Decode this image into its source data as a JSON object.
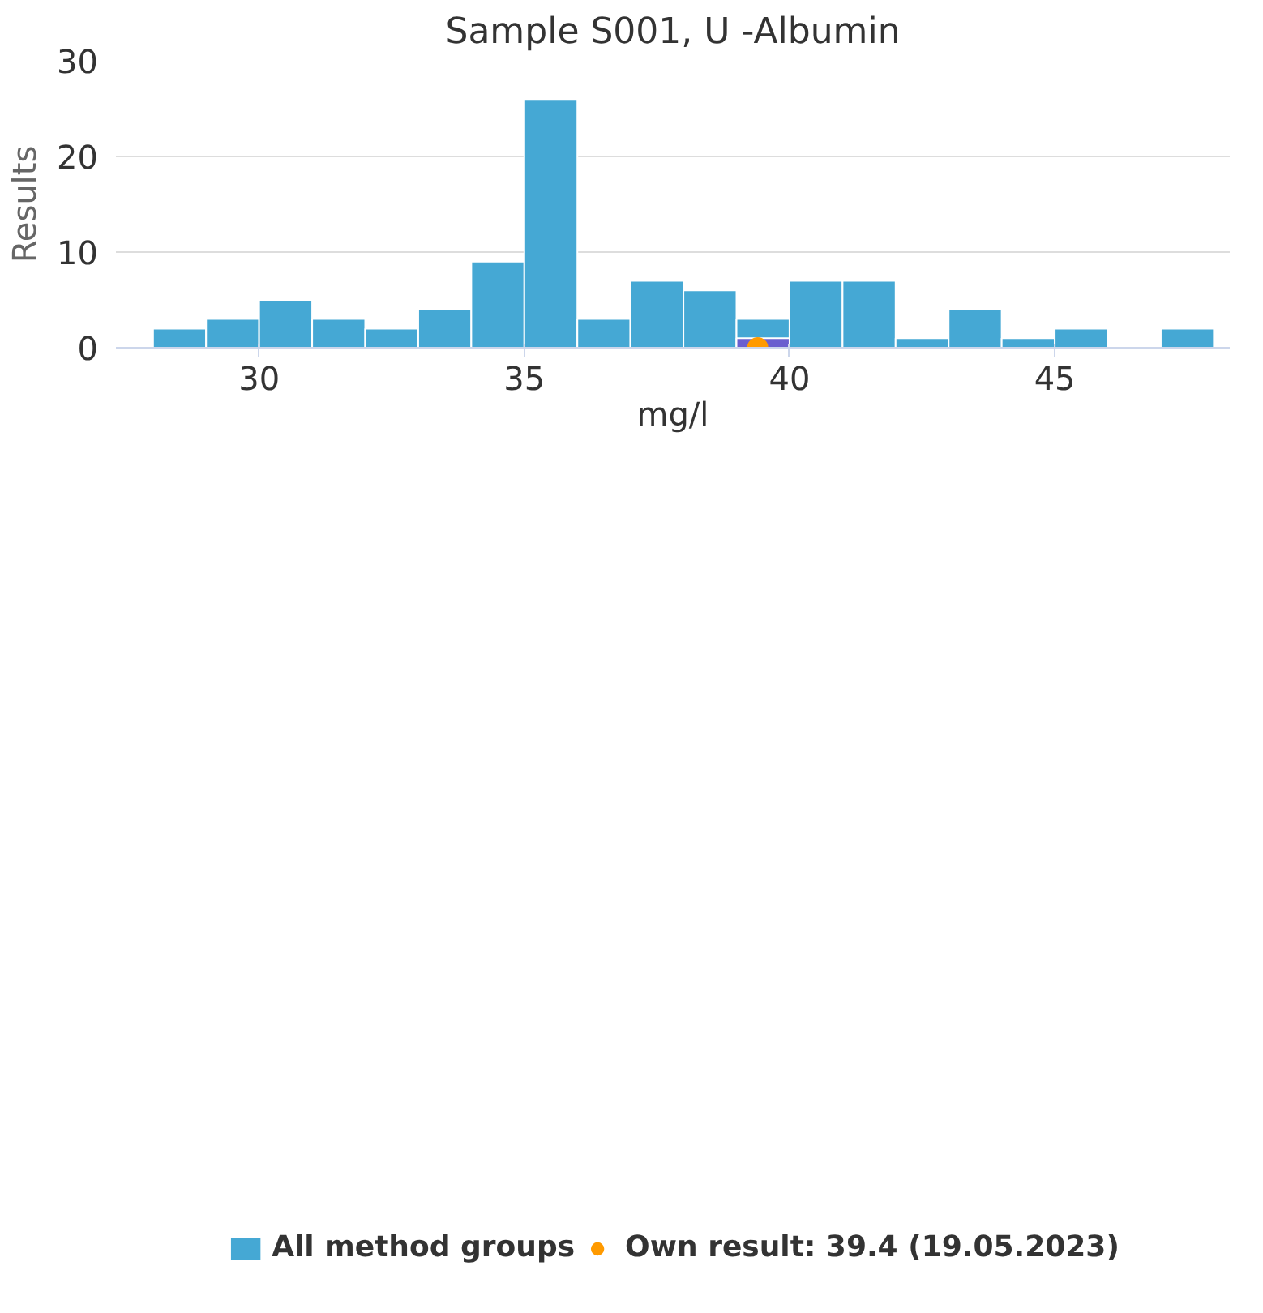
{
  "chart_data": {
    "type": "histogram",
    "title": "Sample S001, U -Albumin",
    "xlabel": "mg/l",
    "ylabel": "Results",
    "bins": [
      28,
      29,
      30,
      31,
      32,
      33,
      34,
      35,
      36,
      37,
      38,
      39,
      40,
      41,
      42,
      43,
      44,
      45,
      46,
      47,
      48
    ],
    "series": [
      {
        "name": "All method groups",
        "color": "#45a8d4",
        "values": [
          2,
          3,
          5,
          3,
          2,
          4,
          9,
          26,
          3,
          7,
          6,
          3,
          7,
          7,
          1,
          4,
          1,
          2,
          0,
          2
        ]
      },
      {
        "color": "#6a5fcf",
        "values": [
          null,
          null,
          null,
          null,
          null,
          null,
          null,
          null,
          null,
          null,
          null,
          1,
          null,
          null,
          null,
          null,
          null,
          null,
          null,
          null
        ]
      },
      {
        "name": "Own result: 39.4 (19.05.2023)",
        "type": "scatter",
        "color": "#ff9a00",
        "x": [
          39.4
        ],
        "values": [
          0
        ]
      }
    ],
    "xlim": [
      27.3,
      48.3
    ],
    "xticks": [
      30,
      35,
      40,
      45
    ],
    "ylim": [
      0,
      30
    ],
    "yticks": [
      0,
      10,
      20,
      30
    ],
    "grid": "y",
    "legend": "bottom",
    "marker": "circle"
  }
}
